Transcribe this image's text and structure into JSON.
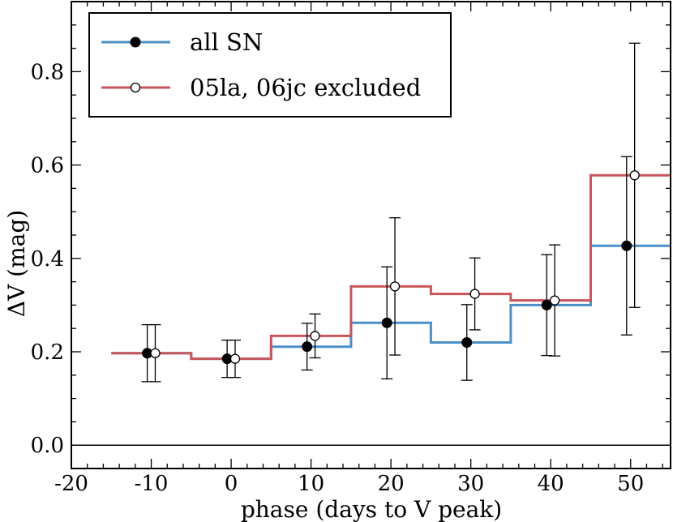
{
  "chart_data": {
    "type": "step",
    "title": "",
    "xlabel": "phase (days to V peak)",
    "ylabel": "ΔV (mag)",
    "xlim": [
      -20,
      55
    ],
    "ylim": [
      -0.05,
      0.95
    ],
    "x_ticks": [
      -20,
      -10,
      0,
      10,
      20,
      30,
      40,
      50
    ],
    "x_tick_labels": [
      "-20",
      "-10",
      "0",
      "10",
      "20",
      "30",
      "40",
      "50"
    ],
    "y_ticks": [
      0.0,
      0.2,
      0.4,
      0.6,
      0.8
    ],
    "y_tick_labels": [
      "0.0",
      "0.2",
      "0.4",
      "0.6",
      "0.8"
    ],
    "zero_line": 0.0,
    "legend_position": "top-left",
    "series": [
      {
        "name": "all SN",
        "color": "#4c90c8",
        "marker": "filled-circle",
        "bin_edges": [
          -15,
          -5,
          5,
          15,
          25,
          35,
          45,
          55
        ],
        "step_values": [
          0.197,
          0.185,
          0.211,
          0.262,
          0.22,
          0.3,
          0.427
        ],
        "points": [
          {
            "x": -10.5,
            "y": 0.197,
            "yerr_low": 0.061,
            "yerr_high": 0.061
          },
          {
            "x": -0.5,
            "y": 0.185,
            "yerr_low": 0.04,
            "yerr_high": 0.04
          },
          {
            "x": 9.5,
            "y": 0.211,
            "yerr_low": 0.05,
            "yerr_high": 0.05
          },
          {
            "x": 19.5,
            "y": 0.262,
            "yerr_low": 0.12,
            "yerr_high": 0.12
          },
          {
            "x": 29.5,
            "y": 0.22,
            "yerr_low": 0.081,
            "yerr_high": 0.081
          },
          {
            "x": 39.5,
            "y": 0.3,
            "yerr_low": 0.108,
            "yerr_high": 0.108
          },
          {
            "x": 49.5,
            "y": 0.427,
            "yerr_low": 0.191,
            "yerr_high": 0.191
          }
        ]
      },
      {
        "name": "05la, 06jc excluded",
        "color": "#c9565a",
        "marker": "open-circle",
        "bin_edges": [
          -15,
          -5,
          5,
          15,
          25,
          35,
          45,
          55
        ],
        "step_values": [
          0.197,
          0.185,
          0.234,
          0.34,
          0.324,
          0.31,
          0.578
        ],
        "points": [
          {
            "x": -9.5,
            "y": 0.197,
            "yerr_low": 0.061,
            "yerr_high": 0.061
          },
          {
            "x": 0.5,
            "y": 0.185,
            "yerr_low": 0.04,
            "yerr_high": 0.04
          },
          {
            "x": 10.5,
            "y": 0.234,
            "yerr_low": 0.047,
            "yerr_high": 0.047
          },
          {
            "x": 20.5,
            "y": 0.34,
            "yerr_low": 0.147,
            "yerr_high": 0.147
          },
          {
            "x": 30.5,
            "y": 0.324,
            "yerr_low": 0.077,
            "yerr_high": 0.077
          },
          {
            "x": 40.5,
            "y": 0.31,
            "yerr_low": 0.119,
            "yerr_high": 0.119
          },
          {
            "x": 50.5,
            "y": 0.578,
            "yerr_low": 0.283,
            "yerr_high": 0.283
          }
        ]
      }
    ]
  }
}
